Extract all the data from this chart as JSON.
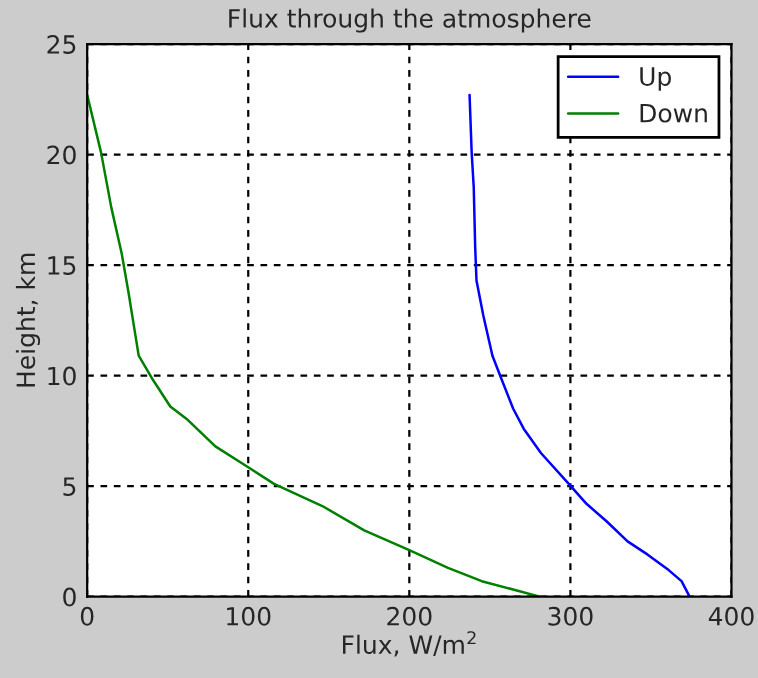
{
  "chart_data": {
    "type": "line",
    "title": "Flux through the atmosphere",
    "xlabel": "Flux, W/m$^{2}$",
    "ylabel": "Height, km",
    "series": [
      {
        "name": "Up",
        "color": "#0000ff",
        "x": [
          237.4,
          238.7,
          240,
          240.9,
          241.7,
          246,
          251.6,
          258,
          264.5,
          271,
          281.7,
          299,
          310,
          322.6,
          335.5,
          348,
          361,
          369,
          374
        ],
        "values": [
          22.7,
          20.1,
          18.5,
          15.8,
          14.3,
          12.7,
          10.9,
          9.7,
          8.5,
          7.6,
          6.5,
          5.1,
          4.2,
          3.4,
          2.5,
          1.9,
          1.2,
          0.7,
          0
        ]
      },
      {
        "name": "Down",
        "color": "#008000",
        "x": [
          0,
          8.6,
          15,
          21.5,
          25.8,
          30,
          32,
          40.9,
          51.6,
          62.4,
          79.6,
          99,
          116,
          146,
          172,
          200,
          224,
          245,
          281
        ],
        "values": [
          22.7,
          20.1,
          17.6,
          15.5,
          13.7,
          11.8,
          10.9,
          9.8,
          8.6,
          8.0,
          6.8,
          5.9,
          5.1,
          4.1,
          3.0,
          2.1,
          1.3,
          0.7,
          0
        ]
      }
    ],
    "xlim": [
      0,
      400
    ],
    "xticks": [
      0,
      100,
      200,
      300,
      400
    ],
    "ylim": [
      0,
      25
    ],
    "yticks": [
      0,
      5,
      10,
      15,
      20,
      25
    ],
    "grid": true,
    "legend": "top right",
    "line_style": "solid",
    "marker": "none"
  }
}
